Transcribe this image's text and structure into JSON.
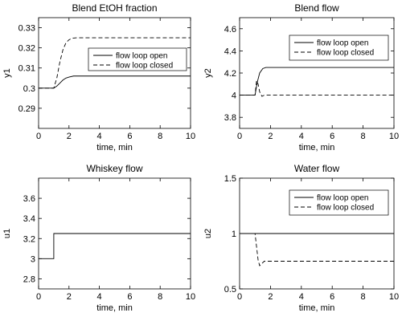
{
  "chart_data": [
    {
      "type": "line",
      "title": "Blend EtOH fraction",
      "xlabel": "time, min",
      "ylabel": "y1",
      "xlim": [
        0,
        10
      ],
      "ylim": [
        0.28,
        0.335
      ],
      "xticks": [
        0,
        2,
        4,
        6,
        8,
        10
      ],
      "yticks": [
        0.29,
        0.3,
        0.31,
        0.32,
        0.33
      ],
      "ytick_labels": [
        "0.29",
        "0.3",
        "0.31",
        "0.32",
        "0.33"
      ],
      "legend": "upper-right",
      "series": [
        {
          "name": "flow loop open",
          "style": "solid",
          "x": [
            0,
            1.0,
            1.2,
            1.4,
            1.6,
            1.8,
            2.0,
            2.3,
            2.6,
            3,
            10
          ],
          "y": [
            0.3,
            0.3,
            0.301,
            0.3025,
            0.304,
            0.305,
            0.3055,
            0.306,
            0.306,
            0.306,
            0.306
          ]
        },
        {
          "name": "flow loop closed",
          "style": "dashed",
          "x": [
            0,
            1.0,
            1.2,
            1.4,
            1.6,
            1.8,
            2.0,
            2.2,
            2.5,
            10
          ],
          "y": [
            0.3,
            0.3,
            0.305,
            0.313,
            0.319,
            0.3225,
            0.324,
            0.3248,
            0.325,
            0.325
          ]
        }
      ]
    },
    {
      "type": "line",
      "title": "Blend flow",
      "xlabel": "time, min",
      "ylabel": "y2",
      "xlim": [
        0,
        10
      ],
      "ylim": [
        3.7,
        4.7
      ],
      "xticks": [
        0,
        2,
        4,
        6,
        8,
        10
      ],
      "yticks": [
        3.8,
        4.0,
        4.2,
        4.4,
        4.6
      ],
      "ytick_labels": [
        "3.8",
        "4",
        "4.2",
        "4.4",
        "4.6"
      ],
      "legend": "upper-right",
      "series": [
        {
          "name": "flow loop open",
          "style": "solid",
          "x": [
            0,
            1.0,
            1.15,
            1.3,
            1.5,
            1.7,
            2.0,
            10
          ],
          "y": [
            4.0,
            4.0,
            4.12,
            4.2,
            4.24,
            4.25,
            4.25,
            4.25
          ]
        },
        {
          "name": "flow loop closed",
          "style": "dashed",
          "x": [
            0,
            1.0,
            1.1,
            1.2,
            1.3,
            1.45,
            1.6,
            1.8,
            10
          ],
          "y": [
            4.0,
            4.0,
            4.13,
            4.1,
            4.03,
            3.99,
            4.0,
            4.0,
            4.0
          ]
        }
      ]
    },
    {
      "type": "line",
      "title": "Whiskey flow",
      "xlabel": "time, min",
      "ylabel": "u1",
      "xlim": [
        0,
        10
      ],
      "ylim": [
        2.7,
        3.8
      ],
      "xticks": [
        0,
        2,
        4,
        6,
        8,
        10
      ],
      "yticks": [
        2.8,
        3.0,
        3.2,
        3.4,
        3.6
      ],
      "ytick_labels": [
        "2.8",
        "3",
        "3.2",
        "3.4",
        "3.6"
      ],
      "series": [
        {
          "style": "solid",
          "x": [
            0,
            1.0,
            1.0,
            10
          ],
          "y": [
            3.0,
            3.0,
            3.25,
            3.25
          ]
        }
      ]
    },
    {
      "type": "line",
      "title": "Water flow",
      "xlabel": "time, min",
      "ylabel": "u2",
      "xlim": [
        0,
        10
      ],
      "ylim": [
        0.5,
        1.5
      ],
      "xticks": [
        0,
        2,
        4,
        6,
        8,
        10
      ],
      "yticks": [
        0.5,
        1.0,
        1.5
      ],
      "ytick_labels": [
        "0.5",
        "1",
        "1.5"
      ],
      "legend": "upper-right",
      "series": [
        {
          "name": "flow loop open",
          "style": "solid",
          "x": [
            0,
            10
          ],
          "y": [
            1.0,
            1.0
          ]
        },
        {
          "name": "flow loop closed",
          "style": "dashed",
          "x": [
            0,
            1.0,
            1.1,
            1.2,
            1.3,
            1.45,
            1.6,
            1.8,
            10
          ],
          "y": [
            1.0,
            1.0,
            0.88,
            0.76,
            0.71,
            0.73,
            0.75,
            0.75,
            0.75
          ]
        }
      ]
    }
  ]
}
